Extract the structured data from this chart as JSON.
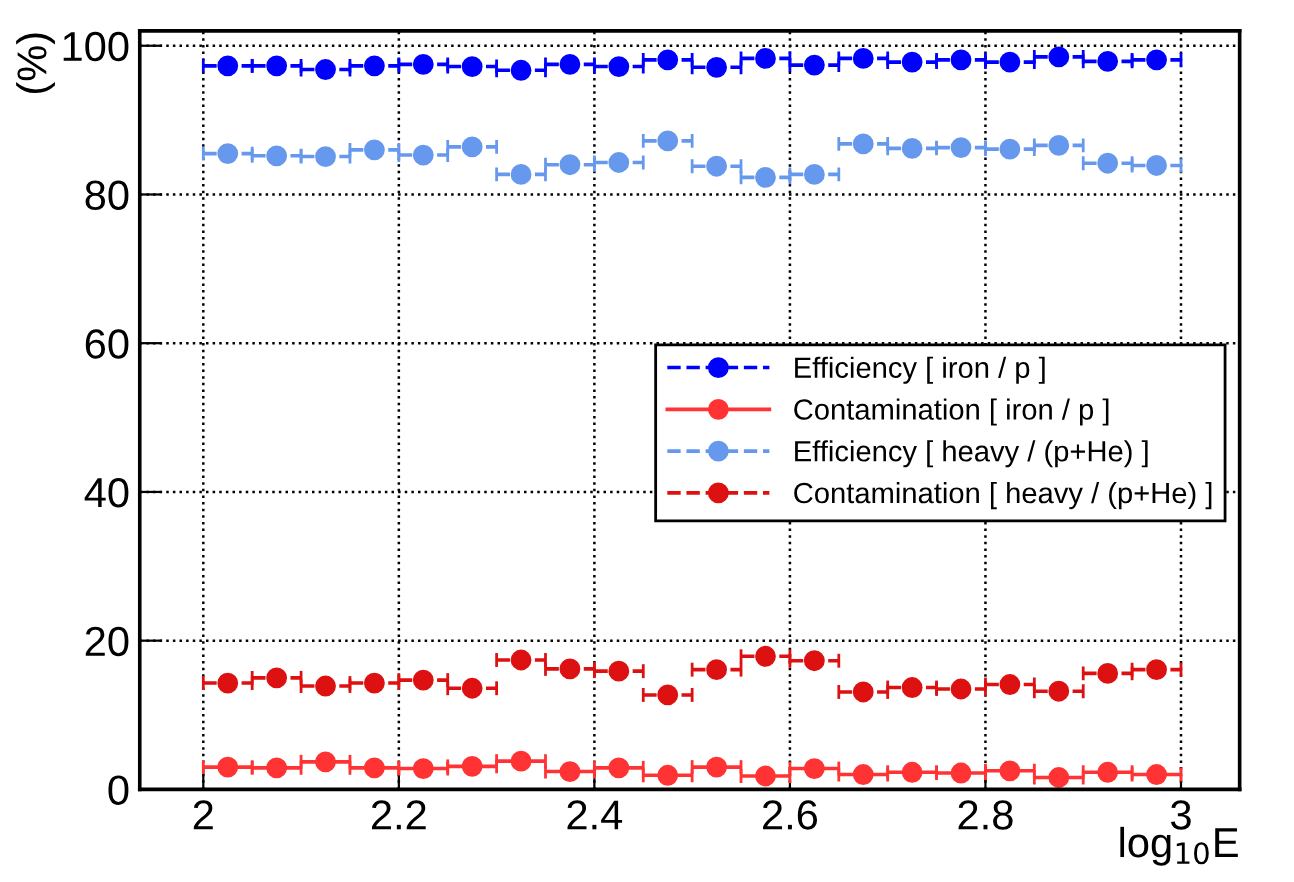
{
  "chart_data": {
    "type": "scatter",
    "xlabel": "log$_{10}$E",
    "ylabel": "(%)",
    "x": [
      2.025,
      2.075,
      2.125,
      2.175,
      2.225,
      2.275,
      2.325,
      2.375,
      2.425,
      2.475,
      2.525,
      2.575,
      2.625,
      2.675,
      2.725,
      2.775,
      2.825,
      2.875,
      2.925,
      2.975
    ],
    "series": [
      {
        "name": "Efficiency [ iron / p ]",
        "color": "#0000ff",
        "marker": "circle",
        "line_style": "dashed",
        "values": [
          97.3,
          97.3,
          96.8,
          97.3,
          97.5,
          97.2,
          96.7,
          97.5,
          97.2,
          98.1,
          97.1,
          98.3,
          97.4,
          98.3,
          97.8,
          98.1,
          97.8,
          98.5,
          97.9,
          98.1
        ],
        "xerrors": [
          0.025,
          0.025,
          0.025,
          0.025,
          0.025,
          0.025,
          0.025,
          0.025,
          0.025,
          0.025,
          0.025,
          0.025,
          0.025,
          0.025,
          0.025,
          0.025,
          0.025,
          0.025,
          0.025,
          0.025
        ]
      },
      {
        "name": "Contamination [ iron / p ]",
        "color": "#ff3333",
        "marker": "circle",
        "line_style": "solid",
        "values": [
          3.0,
          2.9,
          3.7,
          2.9,
          2.8,
          3.1,
          3.8,
          2.4,
          2.9,
          1.9,
          3.0,
          1.8,
          2.8,
          2.0,
          2.3,
          2.2,
          2.5,
          1.6,
          2.3,
          2.0
        ],
        "xerrors": [
          0.025,
          0.025,
          0.025,
          0.025,
          0.025,
          0.025,
          0.025,
          0.025,
          0.025,
          0.025,
          0.025,
          0.025,
          0.025,
          0.025,
          0.025,
          0.025,
          0.025,
          0.025,
          0.025,
          0.025
        ]
      },
      {
        "name": "Efficiency [ heavy / (p+He) ]",
        "color": "#6699ee",
        "marker": "circle",
        "line_style": "dashed",
        "values": [
          85.5,
          85.2,
          85.1,
          86.0,
          85.3,
          86.4,
          82.7,
          84.0,
          84.3,
          87.2,
          83.8,
          82.3,
          82.7,
          86.8,
          86.2,
          86.3,
          86.1,
          86.6,
          84.2,
          83.9
        ],
        "xerrors": [
          0.025,
          0.025,
          0.025,
          0.025,
          0.025,
          0.025,
          0.025,
          0.025,
          0.025,
          0.025,
          0.025,
          0.025,
          0.025,
          0.025,
          0.025,
          0.025,
          0.025,
          0.025,
          0.025,
          0.025
        ]
      },
      {
        "name": "Contamination [ heavy / (p+He) ]",
        "color": "#dd1111",
        "marker": "circle",
        "line_style": "dashed",
        "values": [
          14.3,
          15.0,
          13.9,
          14.3,
          14.7,
          13.6,
          17.4,
          16.2,
          15.9,
          12.7,
          16.1,
          17.9,
          17.3,
          13.1,
          13.7,
          13.5,
          14.1,
          13.2,
          15.6,
          16.1
        ],
        "xerrors": [
          0.025,
          0.025,
          0.025,
          0.025,
          0.025,
          0.025,
          0.025,
          0.025,
          0.025,
          0.025,
          0.025,
          0.025,
          0.025,
          0.025,
          0.025,
          0.025,
          0.025,
          0.025,
          0.025,
          0.025
        ]
      }
    ],
    "xlim": [
      1.935,
      3.06
    ],
    "ylim": [
      0,
      102
    ],
    "xticks": [
      2,
      2.2,
      2.4,
      2.6,
      2.8,
      3
    ],
    "yticks": [
      0,
      20,
      40,
      60,
      80,
      100
    ],
    "grid": true,
    "legend": "right"
  }
}
